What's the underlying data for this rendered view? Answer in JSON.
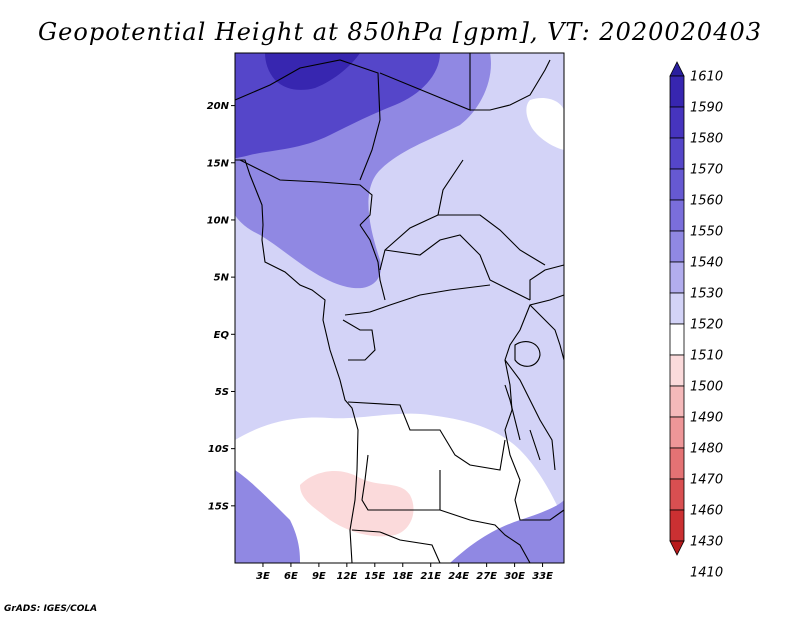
{
  "title": "Geopotential Height at 850hPa [gpm], VT: 2020020403",
  "credit": "GrADS: IGES/COLA",
  "lat_ticks": [
    "20N",
    "15N",
    "10N",
    "5N",
    "EQ",
    "5S",
    "10S",
    "15S"
  ],
  "lat_values": [
    20,
    15,
    10,
    5,
    0,
    -5,
    -10,
    -15
  ],
  "lon_ticks": [
    "3E",
    "6E",
    "9E",
    "12E",
    "15E",
    "18E",
    "21E",
    "24E",
    "27E",
    "30E",
    "33E"
  ],
  "lon_values": [
    3,
    6,
    9,
    12,
    15,
    18,
    21,
    24,
    27,
    30,
    33
  ],
  "colorbar": {
    "labels": [
      "1610",
      "1590",
      "1580",
      "1570",
      "1560",
      "1550",
      "1540",
      "1530",
      "1520",
      "1510",
      "1500",
      "1490",
      "1480",
      "1470",
      "1460",
      "1430",
      "1410"
    ],
    "colors": [
      "#2a1f9e",
      "#3726b0",
      "#4634be",
      "#5546c9",
      "#6659d2",
      "#7a6edb",
      "#9088e3",
      "#b2adee",
      "#d3d3f7",
      "#ffffff",
      "#fbdadb",
      "#f5b9ba",
      "#ee9698",
      "#e47274",
      "#d94f51",
      "#cb3032",
      "#b81a1c"
    ]
  },
  "colors": {
    "high": "#5546c9",
    "mid": "#9088e3",
    "base": "#d3d3f7",
    "low": "#ffffff",
    "lowest": "#fbdadb",
    "border": "#000000"
  }
}
